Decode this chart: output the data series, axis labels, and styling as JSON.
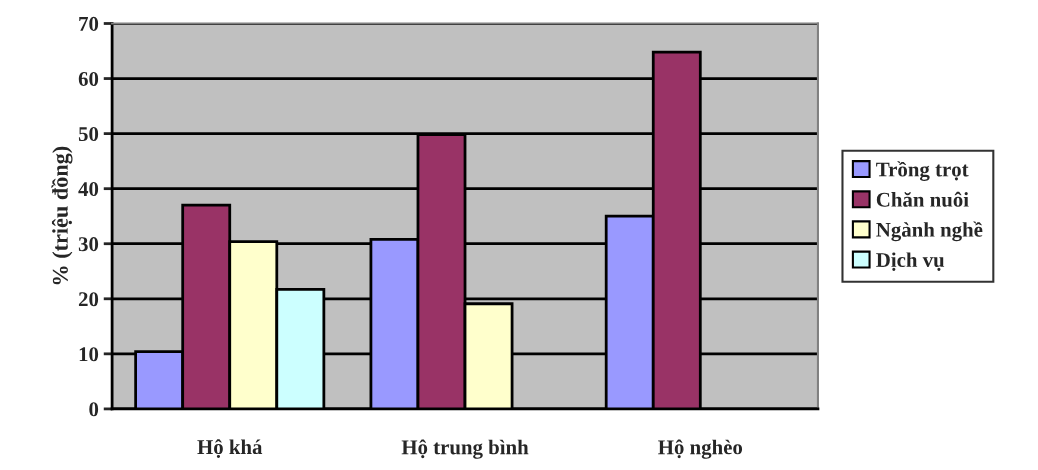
{
  "chart_data": {
    "type": "bar",
    "ylabel": "% (triệu đồng)",
    "categories": [
      "Hộ khá",
      "Hộ trung bình",
      "Hộ nghèo"
    ],
    "series": [
      {
        "name": "Trồng trọt",
        "color": "#9999ff",
        "values": [
          10.4,
          30.8,
          35.0
        ]
      },
      {
        "name": "Chăn nuôi",
        "color": "#993366",
        "values": [
          37.0,
          49.8,
          64.8
        ]
      },
      {
        "name": "Ngành nghề",
        "color": "#ffffcc",
        "values": [
          30.4,
          19.1,
          null
        ]
      },
      {
        "name": "Dịch vụ",
        "color": "#ccffff",
        "values": [
          21.7,
          null,
          null
        ]
      }
    ],
    "ylim": [
      0,
      70
    ],
    "yticks": [
      0,
      10,
      20,
      30,
      40,
      50,
      60,
      70
    ],
    "grid": "y",
    "legend": "right"
  }
}
